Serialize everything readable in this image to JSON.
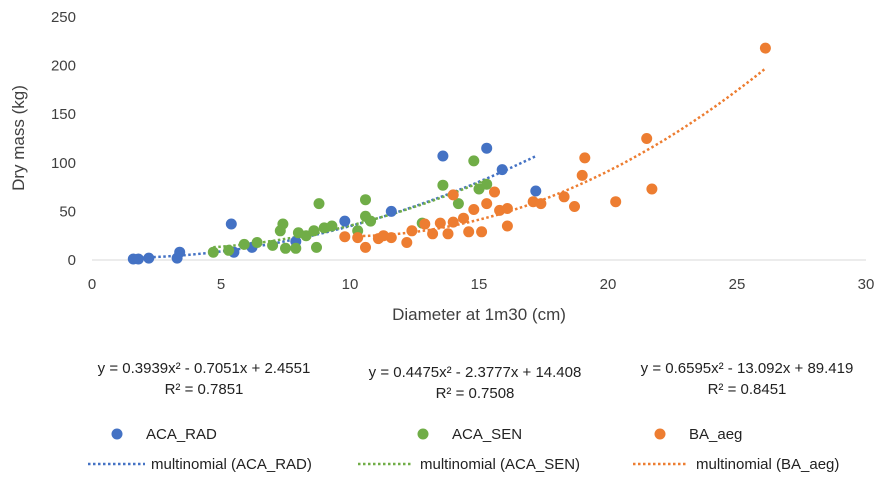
{
  "chart_data": {
    "type": "scatter",
    "xlabel": "Diameter at 1m30 (cm)",
    "ylabel": "Dry mass (kg)",
    "xlim": [
      0,
      30
    ],
    "ylim": [
      0,
      250
    ],
    "xticks": [
      0,
      5,
      10,
      15,
      20,
      25,
      30
    ],
    "yticks": [
      0,
      50,
      100,
      150,
      200,
      250
    ],
    "grid": false,
    "legend_position": "bottom",
    "series": [
      {
        "name": "ACA_RAD",
        "color": "#4472C4",
        "points": [
          [
            1.6,
            1
          ],
          [
            1.8,
            1
          ],
          [
            2.2,
            2
          ],
          [
            3.3,
            2
          ],
          [
            3.4,
            8
          ],
          [
            5.4,
            37
          ],
          [
            5.5,
            8
          ],
          [
            6.2,
            13
          ],
          [
            7.9,
            19
          ],
          [
            9.8,
            40
          ],
          [
            11.6,
            50
          ],
          [
            13.6,
            107
          ],
          [
            15.3,
            115
          ],
          [
            15.9,
            93
          ],
          [
            17.2,
            71
          ]
        ],
        "trend_label": "multinomial (ACA_RAD)",
        "equation": "y = 0.3939x² - 0.7051x + 2.4551",
        "r2": "R² = 0.7851",
        "trend": {
          "a": 0.3939,
          "b": -0.7051,
          "c": 2.4551,
          "from": 1.6,
          "to": 17.2
        }
      },
      {
        "name": "ACA_SEN",
        "color": "#70AD47",
        "points": [
          [
            4.7,
            8
          ],
          [
            5.3,
            10
          ],
          [
            5.9,
            16
          ],
          [
            6.4,
            18
          ],
          [
            7.0,
            15
          ],
          [
            7.3,
            30
          ],
          [
            7.4,
            37
          ],
          [
            7.5,
            12
          ],
          [
            7.9,
            12
          ],
          [
            8.0,
            28
          ],
          [
            8.3,
            25
          ],
          [
            8.6,
            30
          ],
          [
            8.7,
            13
          ],
          [
            8.8,
            58
          ],
          [
            9.0,
            33
          ],
          [
            9.3,
            35
          ],
          [
            10.3,
            30
          ],
          [
            10.6,
            62
          ],
          [
            10.6,
            45
          ],
          [
            10.8,
            40
          ],
          [
            12.8,
            38
          ],
          [
            13.6,
            77
          ],
          [
            14.2,
            58
          ],
          [
            14.8,
            102
          ],
          [
            15.0,
            73
          ],
          [
            15.3,
            78
          ]
        ],
        "trend_label": "multinomial (ACA_SEN)",
        "equation": "y = 0.4475x² - 2.3777x + 14.408",
        "r2": "R² = 0.7508",
        "trend": {
          "a": 0.4475,
          "b": -2.3777,
          "c": 14.408,
          "from": 4.7,
          "to": 15.3
        }
      },
      {
        "name": "BA_aeg",
        "color": "#ED7D31",
        "points": [
          [
            9.8,
            24
          ],
          [
            10.3,
            23
          ],
          [
            10.6,
            13
          ],
          [
            11.1,
            22
          ],
          [
            11.3,
            25
          ],
          [
            11.6,
            23
          ],
          [
            12.2,
            18
          ],
          [
            12.4,
            30
          ],
          [
            12.9,
            37
          ],
          [
            13.2,
            27
          ],
          [
            13.5,
            38
          ],
          [
            13.8,
            27
          ],
          [
            14.0,
            39
          ],
          [
            14.0,
            67
          ],
          [
            14.4,
            43
          ],
          [
            14.6,
            29
          ],
          [
            14.8,
            52
          ],
          [
            15.1,
            29
          ],
          [
            15.3,
            58
          ],
          [
            15.6,
            70
          ],
          [
            15.8,
            51
          ],
          [
            16.1,
            53
          ],
          [
            16.1,
            35
          ],
          [
            17.1,
            60
          ],
          [
            17.4,
            58
          ],
          [
            18.3,
            65
          ],
          [
            18.7,
            55
          ],
          [
            19.0,
            87
          ],
          [
            19.1,
            105
          ],
          [
            20.3,
            60
          ],
          [
            21.5,
            125
          ],
          [
            21.7,
            73
          ],
          [
            26.1,
            218
          ]
        ],
        "trend_label": "multinomial (BA_aeg)",
        "equation": "y = 0.6595x² - 13.092x + 89.419",
        "r2": "R² = 0.8451",
        "trend": {
          "a": 0.6595,
          "b": -13.092,
          "c": 89.419,
          "from": 10.5,
          "to": 26.1
        }
      }
    ]
  }
}
